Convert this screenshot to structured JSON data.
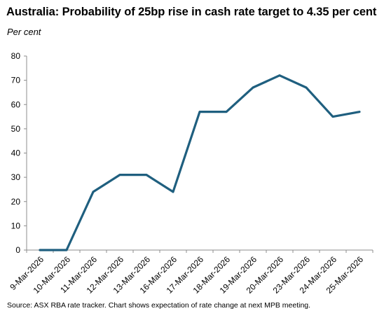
{
  "chart_data": {
    "type": "line",
    "title": "Australia: Probability of 25bp rise in cash rate target to 4.35 per cent",
    "ylabel": "Per cent",
    "xlabel": "",
    "categories": [
      "9-Mar-2026",
      "10-Mar-2026",
      "11-Mar-2026",
      "12-Mar-2026",
      "13-Mar-2026",
      "16-Mar-2026",
      "17-Mar-2026",
      "18-Mar-2026",
      "19-Mar-2026",
      "20-Mar-2026",
      "23-Mar-2026",
      "24-Mar-2026",
      "25-Mar-2026"
    ],
    "series": [
      {
        "values": [
          0,
          0,
          24,
          31,
          31,
          24,
          57,
          57,
          67,
          72,
          67,
          55,
          57
        ],
        "color": "#1f5f7f"
      }
    ],
    "ylim": [
      0,
      80
    ],
    "yticks": [
      0,
      10,
      20,
      30,
      40,
      50,
      60,
      70,
      80
    ],
    "grid": false,
    "legend": "none",
    "source": "Source: ASX RBA rate tracker. Chart shows expectation of rate change at next MPB meeting."
  }
}
